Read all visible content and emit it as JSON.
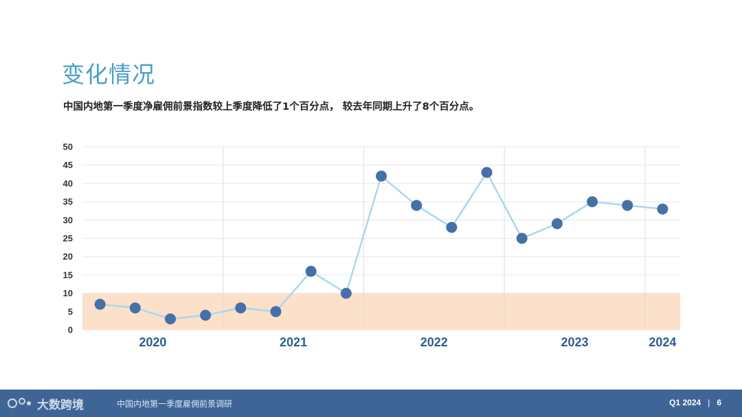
{
  "page": {
    "title": "变化情况",
    "subtitle": "中国内地第一季度净雇佣前景指数较上季度降低了1个百分点， 较去年同期上升了8个百分点。"
  },
  "footer": {
    "logo_text": "大数跨境",
    "report_name": "中国内地第一季度雇佣前景调研",
    "quarter": "Q1 2024",
    "separator": "|",
    "page_number": "6"
  },
  "colors": {
    "title": "#4a9ec9",
    "line": "#a8d8ec",
    "marker": "#4670a8",
    "band": "#fde0c8",
    "year_label": "#2e5d8f",
    "footer_bg": "#3f6596"
  },
  "chart_data": {
    "type": "line",
    "title": "",
    "xlabel": "",
    "ylabel": "",
    "ylim": [
      0,
      50
    ],
    "yticks": [
      0,
      5,
      10,
      15,
      20,
      25,
      30,
      35,
      40,
      45,
      50
    ],
    "grid": true,
    "highlight_band": [
      0,
      10
    ],
    "year_groups": [
      {
        "label": "2020",
        "count": 4
      },
      {
        "label": "2021",
        "count": 4
      },
      {
        "label": "2022",
        "count": 4
      },
      {
        "label": "2023",
        "count": 4
      },
      {
        "label": "2024",
        "count": 1
      }
    ],
    "series": [
      {
        "values": [
          7,
          6,
          3,
          4,
          6,
          5,
          16,
          10,
          42,
          34,
          28,
          43,
          25,
          29,
          35,
          34,
          33
        ]
      }
    ]
  }
}
